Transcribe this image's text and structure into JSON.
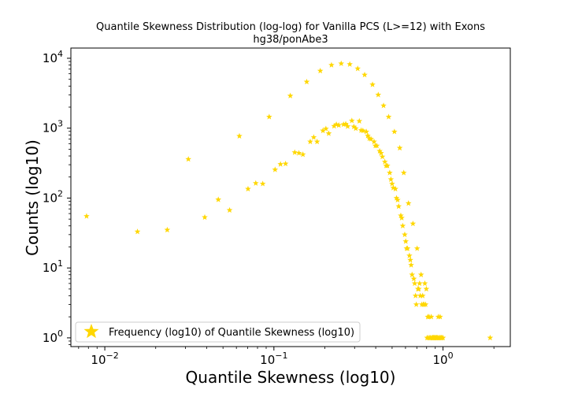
{
  "chart_data": {
    "type": "scatter",
    "title": "Quantile Skewness Distribution (log-log) for Vanilla PCS (L>=12) with Exons",
    "subtitle": "hg38/ponAbe3",
    "xlabel": "Quantile Skewness (log10)",
    "ylabel": "Counts (log10)",
    "xscale": "log",
    "yscale": "log",
    "xlim": [
      0.0063,
      2.5
    ],
    "ylim": [
      0.75,
      14000
    ],
    "x_ticks": [
      {
        "value": 0.01,
        "base": "10",
        "exp": "−2"
      },
      {
        "value": 0.1,
        "base": "10",
        "exp": "−1"
      },
      {
        "value": 1,
        "base": "10",
        "exp": "0"
      }
    ],
    "y_ticks": [
      {
        "value": 1,
        "base": "10",
        "exp": "0"
      },
      {
        "value": 10,
        "base": "10",
        "exp": "1"
      },
      {
        "value": 100,
        "base": "10",
        "exp": "2"
      },
      {
        "value": 1000,
        "base": "10",
        "exp": "3"
      },
      {
        "value": 10000,
        "base": "10",
        "exp": "4"
      }
    ],
    "marker": "star",
    "color": "#FFD700",
    "legend": {
      "location": "lower-left",
      "label": "Frequency (log10) of Quantile Skewness (log10)"
    },
    "series": [
      {
        "name": "Frequency (log10) of Quantile Skewness (log10)",
        "points": [
          [
            0.0078,
            55
          ],
          [
            0.0156,
            33
          ],
          [
            0.0234,
            35
          ],
          [
            0.0312,
            360
          ],
          [
            0.039,
            53
          ],
          [
            0.0469,
            95
          ],
          [
            0.0547,
            67
          ],
          [
            0.0625,
            770
          ],
          [
            0.0703,
            135
          ],
          [
            0.0781,
            163
          ],
          [
            0.0859,
            160
          ],
          [
            0.0938,
            1450
          ],
          [
            0.1016,
            255
          ],
          [
            0.1094,
            305
          ],
          [
            0.1172,
            310
          ],
          [
            0.125,
            2900
          ],
          [
            0.1328,
            450
          ],
          [
            0.1406,
            440
          ],
          [
            0.1484,
            420
          ],
          [
            0.1563,
            4600
          ],
          [
            0.164,
            640
          ],
          [
            0.172,
            740
          ],
          [
            0.18,
            640
          ],
          [
            0.188,
            6600
          ],
          [
            0.195,
            920
          ],
          [
            0.203,
            980
          ],
          [
            0.211,
            840
          ],
          [
            0.219,
            8000
          ],
          [
            0.227,
            1070
          ],
          [
            0.234,
            1130
          ],
          [
            0.242,
            1100
          ],
          [
            0.25,
            8400
          ],
          [
            0.258,
            1130
          ],
          [
            0.266,
            1150
          ],
          [
            0.273,
            1060
          ],
          [
            0.281,
            8200
          ],
          [
            0.289,
            1280
          ],
          [
            0.297,
            1050
          ],
          [
            0.305,
            990
          ],
          [
            0.313,
            7100
          ],
          [
            0.32,
            1260
          ],
          [
            0.328,
            930
          ],
          [
            0.336,
            920
          ],
          [
            0.344,
            5800
          ],
          [
            0.352,
            890
          ],
          [
            0.359,
            780
          ],
          [
            0.367,
            710
          ],
          [
            0.375,
            700
          ],
          [
            0.383,
            4200
          ],
          [
            0.391,
            640
          ],
          [
            0.398,
            560
          ],
          [
            0.406,
            560
          ],
          [
            0.414,
            3000
          ],
          [
            0.422,
            470
          ],
          [
            0.43,
            440
          ],
          [
            0.438,
            390
          ],
          [
            0.445,
            2100
          ],
          [
            0.453,
            330
          ],
          [
            0.461,
            290
          ],
          [
            0.469,
            290
          ],
          [
            0.477,
            1450
          ],
          [
            0.484,
            230
          ],
          [
            0.492,
            185
          ],
          [
            0.5,
            160
          ],
          [
            0.508,
            140
          ],
          [
            0.516,
            890
          ],
          [
            0.523,
            135
          ],
          [
            0.531,
            100
          ],
          [
            0.539,
            94
          ],
          [
            0.547,
            76
          ],
          [
            0.555,
            520
          ],
          [
            0.563,
            56
          ],
          [
            0.57,
            52
          ],
          [
            0.578,
            40
          ],
          [
            0.586,
            230
          ],
          [
            0.594,
            30
          ],
          [
            0.602,
            24
          ],
          [
            0.609,
            19
          ],
          [
            0.617,
            19
          ],
          [
            0.625,
            84
          ],
          [
            0.633,
            15
          ],
          [
            0.641,
            13
          ],
          [
            0.648,
            11
          ],
          [
            0.656,
            8
          ],
          [
            0.664,
            43
          ],
          [
            0.672,
            7
          ],
          [
            0.68,
            6
          ],
          [
            0.688,
            4
          ],
          [
            0.695,
            3
          ],
          [
            0.703,
            19
          ],
          [
            0.711,
            5
          ],
          [
            0.719,
            5
          ],
          [
            0.727,
            6
          ],
          [
            0.734,
            4
          ],
          [
            0.742,
            8
          ],
          [
            0.75,
            3
          ],
          [
            0.758,
            4
          ],
          [
            0.766,
            3
          ],
          [
            0.773,
            3
          ],
          [
            0.781,
            6
          ],
          [
            0.789,
            3
          ],
          [
            0.797,
            5
          ],
          [
            0.805,
            1
          ],
          [
            0.813,
            2
          ],
          [
            0.82,
            1
          ],
          [
            0.828,
            2
          ],
          [
            0.836,
            1
          ],
          [
            0.844,
            1
          ],
          [
            0.852,
            2
          ],
          [
            0.859,
            1
          ],
          [
            0.867,
            1
          ],
          [
            0.875,
            1
          ],
          [
            0.883,
            1
          ],
          [
            0.891,
            1
          ],
          [
            0.898,
            1
          ],
          [
            0.906,
            1
          ],
          [
            0.914,
            1
          ],
          [
            0.922,
            1
          ],
          [
            0.93,
            1
          ],
          [
            0.938,
            2
          ],
          [
            0.945,
            1
          ],
          [
            0.953,
            1
          ],
          [
            0.961,
            2
          ],
          [
            0.969,
            1
          ],
          [
            0.977,
            1
          ],
          [
            0.984,
            1
          ],
          [
            1.0,
            1
          ],
          [
            1.9,
            1
          ]
        ]
      }
    ]
  }
}
